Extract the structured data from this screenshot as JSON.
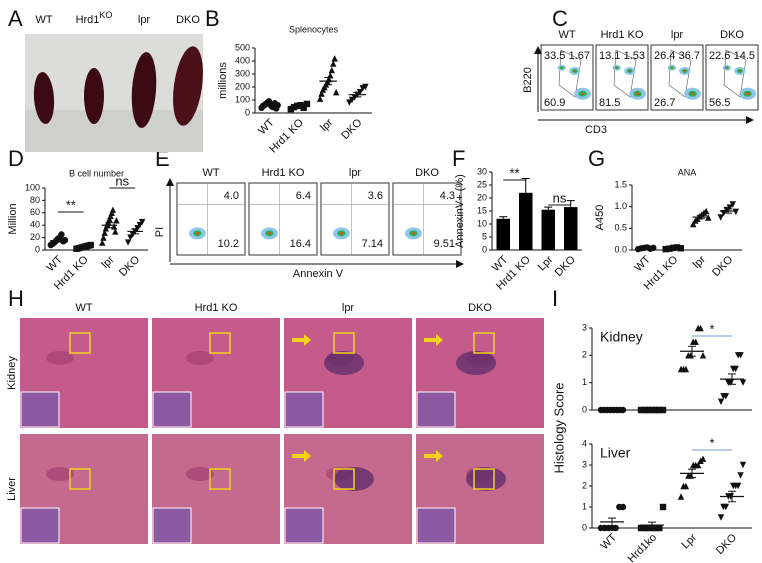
{
  "panels": {
    "letters": [
      "A",
      "B",
      "C",
      "D",
      "E",
      "F",
      "G",
      "H",
      "I"
    ]
  },
  "photo": {
    "labels": [
      {
        "text": "WT"
      },
      {
        "text": "Hrd1",
        "sup": "KO"
      },
      {
        "text": "lpr"
      },
      {
        "text": "DKO"
      }
    ]
  },
  "flow_c": {
    "groups": [
      "WT",
      "Hrd1 KO",
      "lpr",
      "DKO"
    ],
    "y_label": "B220",
    "x_label": "CD3",
    "quadrants": [
      [
        "33.5",
        "1.67",
        "60.9"
      ],
      [
        "13.1",
        "1.53",
        "81.5"
      ],
      [
        "26.4",
        "36.7",
        "26.7"
      ],
      [
        "22.6",
        "14.5",
        "56.5"
      ]
    ]
  },
  "flow_e": {
    "groups": [
      "WT",
      "Hrd1 KO",
      "lpr",
      "DKO"
    ],
    "y_label": "PI",
    "x_label": "Annexin V",
    "quadrants": [
      [
        "4.0",
        "10.2"
      ],
      [
        "6.4",
        "16.4"
      ],
      [
        "3.6",
        "7.14"
      ],
      [
        "4.3",
        "9.51"
      ]
    ]
  },
  "histology": {
    "columns": [
      "WT",
      "Hrd1 KO",
      "lpr",
      "DKO"
    ],
    "rows": [
      "Kidney",
      "Liver"
    ]
  },
  "chart_data": [
    {
      "type": "dot",
      "title": "Splenocytes",
      "y_label": "millions",
      "categories": [
        "WT",
        "Hrd1 KO",
        "lpr",
        "DKO"
      ],
      "markers": [
        "circle",
        "square",
        "triangle",
        "triangle-down"
      ],
      "groups": [
        [
          40,
          55,
          60,
          70,
          80,
          90,
          65,
          50,
          45,
          75,
          35,
          60
        ],
        [
          30,
          45,
          55,
          60,
          40,
          70
        ],
        [
          110,
          150,
          180,
          200,
          220,
          240,
          260,
          290,
          330,
          380,
          420,
          160
        ],
        [
          80,
          100,
          120,
          140,
          160,
          190,
          200
        ]
      ],
      "means": [
        60,
        50,
        245,
        141
      ],
      "sems": [
        5,
        6,
        28,
        17
      ],
      "ylim": [
        0,
        500
      ],
      "yticks": [
        0,
        100,
        200,
        300,
        400,
        500
      ]
    },
    {
      "type": "dot",
      "title": "B cell number",
      "y_label": "Million",
      "categories": [
        "WT",
        "Hrd1 KO",
        "lpr",
        "DKO"
      ],
      "markers": [
        "circle",
        "square",
        "triangle",
        "triangle-down"
      ],
      "groups": [
        [
          8,
          10,
          12,
          15,
          18,
          20,
          25,
          14,
          16
        ],
        [
          2,
          3,
          4,
          5,
          6,
          7,
          8
        ],
        [
          12,
          20,
          28,
          35,
          40,
          45,
          50,
          55,
          60,
          65,
          38,
          30,
          48
        ],
        [
          12,
          20,
          25,
          30,
          35,
          40,
          45
        ]
      ],
      "means": [
        15,
        5,
        40,
        30
      ],
      "sems": [
        2,
        1,
        4,
        4
      ],
      "ylim": [
        0,
        100
      ],
      "yticks": [
        0,
        20,
        40,
        60,
        80,
        100
      ],
      "annotations": [
        "**",
        "ns"
      ]
    },
    {
      "type": "bar",
      "y_label": "AnnexinV+ (%)",
      "categories": [
        "WT",
        "Hrd1 KO",
        "Lpr",
        "DKO"
      ],
      "values": [
        12,
        22,
        15.5,
        16.5
      ],
      "errors": [
        0.8,
        5.5,
        1,
        2.5
      ],
      "color": "#000000",
      "ylim": [
        0,
        30
      ],
      "yticks": [
        0,
        5,
        10,
        15,
        20,
        25,
        30
      ],
      "annotations": [
        "**",
        "ns"
      ]
    },
    {
      "type": "dot",
      "title": "ANA",
      "y_label": "A450",
      "categories": [
        "WT",
        "Hrd1 KO",
        "lpr",
        "DKO"
      ],
      "markers": [
        "circle",
        "square",
        "triangle",
        "triangle-down"
      ],
      "groups": [
        [
          0.02,
          0.04,
          0.05,
          0.06,
          0.03,
          0.05
        ],
        [
          0.02,
          0.03,
          0.05,
          0.06,
          0.04
        ],
        [
          0.6,
          0.68,
          0.72,
          0.78,
          0.82,
          0.86,
          0.9,
          0.75
        ],
        [
          0.75,
          0.85,
          0.92,
          0.98,
          1.05,
          0.88
        ]
      ],
      "means": [
        0.04,
        0.04,
        0.76,
        0.9
      ],
      "sems": [
        0.01,
        0.01,
        0.04,
        0.05
      ],
      "ylim": [
        0,
        1.5
      ],
      "yticks": [
        {
          "value": 0,
          "label": "0.0"
        },
        0.5,
        {
          "value": 1,
          "label": "1.0"
        },
        1.5
      ]
    },
    {
      "type": "dot",
      "title": "Kidney",
      "y_label": "Histology Score",
      "categories": [
        null,
        null,
        null,
        null
      ],
      "markers": [
        "circle",
        "square",
        "triangle",
        "triangle-down"
      ],
      "groups": [
        [
          0,
          0,
          0,
          0,
          0,
          0,
          0,
          0
        ],
        [
          0,
          0,
          0,
          0,
          0,
          0,
          0
        ],
        [
          1.5,
          1.5,
          1.5,
          2,
          2,
          2.5,
          2.5,
          3,
          3,
          2
        ],
        [
          0.3,
          0.5,
          0.5,
          1,
          1,
          1.5,
          1.5,
          2,
          2,
          1
        ]
      ],
      "means": [
        0,
        0,
        2.15,
        1.13
      ],
      "sems": [
        0,
        0,
        0.18,
        0.19
      ],
      "ylim": [
        0,
        3
      ],
      "yticks": [
        0,
        1,
        2,
        3
      ],
      "annotations": [
        "*"
      ]
    },
    {
      "type": "dot",
      "title": "Liver",
      "categories": [
        "WT",
        "Hrd1ko",
        "Lpr",
        "DKO"
      ],
      "markers": [
        "circle",
        "square",
        "triangle",
        "triangle-down"
      ],
      "groups": [
        [
          0,
          0,
          0,
          0,
          0,
          1,
          1
        ],
        [
          0,
          0,
          0,
          0,
          0,
          0,
          1
        ],
        [
          1.5,
          2,
          2,
          2.5,
          2.5,
          3,
          3,
          3,
          3.2,
          3.3
        ],
        [
          0.5,
          1,
          1,
          1.5,
          1.5,
          2,
          2,
          2,
          2.5,
          3
        ]
      ],
      "means": [
        0.29,
        0.14,
        2.6,
        1.5
      ],
      "sems": [
        0.18,
        0.14,
        0.2,
        0.25
      ],
      "ylim": [
        0,
        4
      ],
      "yticks": [
        0,
        1,
        2,
        3,
        4
      ],
      "annotations": [
        "*"
      ]
    }
  ]
}
